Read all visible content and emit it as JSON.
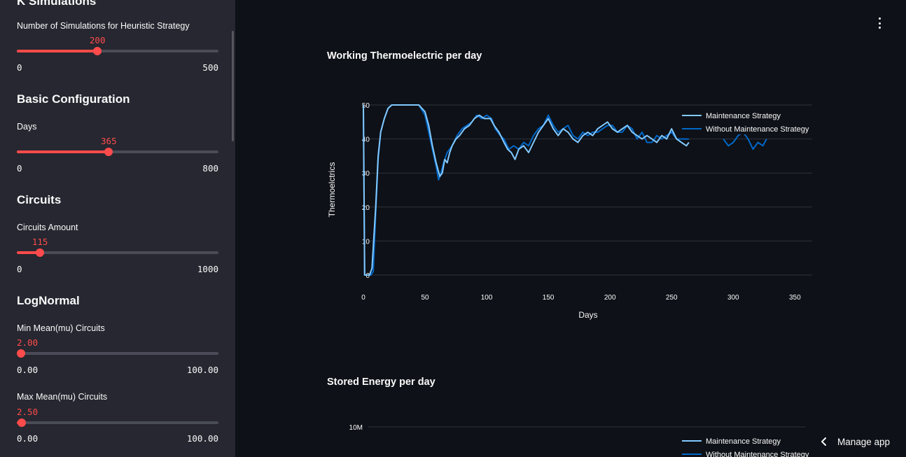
{
  "sidebar": {
    "top_heading": "K Simulations",
    "sliders": [
      {
        "section": null,
        "label": "Number of Simulations for Heuristic Strategy",
        "value": "200",
        "min": "0",
        "max": "500",
        "fraction": 0.4
      },
      {
        "section": "Basic Configuration",
        "label": "Days",
        "value": "365",
        "min": "0",
        "max": "800",
        "fraction": 0.456
      },
      {
        "section": "Circuits",
        "label": "Circuits Amount",
        "value": "115",
        "min": "0",
        "max": "1000",
        "fraction": 0.115
      },
      {
        "section": "LogNormal",
        "label": "Min Mean(mu) Circuits",
        "value": "2.00",
        "min": "0.00",
        "max": "100.00",
        "fraction": 0.02
      },
      {
        "section": null,
        "label": "Max Mean(mu) Circuits",
        "value": "2.50",
        "min": "0.00",
        "max": "100.00",
        "fraction": 0.025
      }
    ]
  },
  "main": {
    "menu_icon": "vertical-ellipsis-icon",
    "manage_app": {
      "label": "Manage app",
      "icon": "chevron-left-icon"
    }
  },
  "colors": {
    "accent": "#ff4b4b",
    "series_maintenance": "#83c9ff",
    "series_without": "#0068c9",
    "background": "#0e1117",
    "sidebar": "#262730"
  },
  "chart_data": [
    {
      "type": "line",
      "title": "Working Thermoelectric per day",
      "xlabel": "Days",
      "ylabel": "Thermoelctrics",
      "xlim": [
        0,
        364
      ],
      "ylim": [
        0,
        50
      ],
      "xticks": [
        "0",
        "50",
        "100",
        "150",
        "200",
        "250",
        "300",
        "350"
      ],
      "yticks": [
        "0",
        "10",
        "20",
        "30",
        "40",
        "50"
      ],
      "legend": "top-right",
      "series": [
        {
          "name": "Maintenance Strategy",
          "color": "#83c9ff",
          "points": [
            [
              0,
              50
            ],
            [
              1,
              0
            ],
            [
              5,
              0
            ],
            [
              7,
              2
            ],
            [
              10,
              20
            ],
            [
              12,
              35
            ],
            [
              14,
              42
            ],
            [
              17,
              46
            ],
            [
              20,
              49
            ],
            [
              23,
              50
            ],
            [
              30,
              50
            ],
            [
              40,
              50
            ],
            [
              45,
              50
            ],
            [
              50,
              48
            ],
            [
              53,
              44
            ],
            [
              56,
              38
            ],
            [
              59,
              33
            ],
            [
              62,
              29
            ],
            [
              64,
              30
            ],
            [
              66,
              34
            ],
            [
              68,
              33
            ],
            [
              70,
              36
            ],
            [
              72,
              38
            ],
            [
              75,
              40
            ],
            [
              78,
              41
            ],
            [
              82,
              43
            ],
            [
              86,
              44
            ],
            [
              90,
              46
            ],
            [
              94,
              47
            ],
            [
              98,
              46
            ],
            [
              103,
              46
            ],
            [
              106,
              44
            ],
            [
              110,
              42
            ],
            [
              114,
              39
            ],
            [
              117,
              37
            ],
            [
              120,
              36
            ],
            [
              123,
              34
            ],
            [
              126,
              37
            ],
            [
              130,
              38
            ],
            [
              134,
              36
            ],
            [
              138,
              39
            ],
            [
              142,
              42
            ],
            [
              146,
              44
            ],
            [
              150,
              46
            ],
            [
              154,
              43
            ],
            [
              158,
              41
            ],
            [
              162,
              43
            ],
            [
              166,
              42
            ],
            [
              170,
              40
            ],
            [
              174,
              39
            ],
            [
              178,
              41
            ],
            [
              182,
              42
            ],
            [
              186,
              41
            ],
            [
              190,
              43
            ],
            [
              194,
              44
            ],
            [
              198,
              45
            ],
            [
              202,
              43
            ],
            [
              206,
              42
            ],
            [
              210,
              43
            ],
            [
              214,
              44
            ],
            [
              218,
              42
            ],
            [
              222,
              41
            ],
            [
              226,
              40
            ],
            [
              230,
              41
            ],
            [
              234,
              40
            ],
            [
              238,
              39
            ],
            [
              242,
              41
            ],
            [
              246,
              40
            ],
            [
              250,
              43
            ],
            [
              254,
              40
            ],
            [
              258,
              39
            ],
            [
              262,
              38
            ],
            [
              264,
              39
            ]
          ]
        },
        {
          "name": "Without Maintenance Strategy",
          "color": "#0068c9",
          "points": [
            [
              0,
              50
            ],
            [
              1,
              0
            ],
            [
              6,
              0
            ],
            [
              8,
              1
            ],
            [
              10,
              18
            ],
            [
              12,
              34
            ],
            [
              14,
              42
            ],
            [
              17,
              46
            ],
            [
              20,
              49
            ],
            [
              23,
              50
            ],
            [
              30,
              50
            ],
            [
              40,
              50
            ],
            [
              45,
              50
            ],
            [
              50,
              47
            ],
            [
              53,
              42
            ],
            [
              56,
              37
            ],
            [
              59,
              32
            ],
            [
              61,
              28
            ],
            [
              63,
              30
            ],
            [
              65,
              33
            ],
            [
              68,
              36
            ],
            [
              72,
              38
            ],
            [
              76,
              41
            ],
            [
              80,
              43
            ],
            [
              84,
              44
            ],
            [
              88,
              45
            ],
            [
              92,
              47
            ],
            [
              96,
              46
            ],
            [
              100,
              47
            ],
            [
              104,
              46
            ],
            [
              107,
              43
            ],
            [
              111,
              41
            ],
            [
              114,
              40
            ],
            [
              118,
              37
            ],
            [
              122,
              38
            ],
            [
              126,
              37
            ],
            [
              130,
              39
            ],
            [
              134,
              38
            ],
            [
              138,
              41
            ],
            [
              142,
              43
            ],
            [
              146,
              44
            ],
            [
              150,
              47
            ],
            [
              154,
              44
            ],
            [
              158,
              42
            ],
            [
              162,
              43
            ],
            [
              166,
              44
            ],
            [
              170,
              41
            ],
            [
              174,
              40
            ],
            [
              178,
              42
            ],
            [
              182,
              41
            ],
            [
              186,
              42
            ],
            [
              190,
              42
            ],
            [
              194,
              43
            ],
            [
              198,
              44
            ],
            [
              202,
              44
            ],
            [
              206,
              42
            ],
            [
              210,
              42
            ],
            [
              214,
              44
            ],
            [
              218,
              43
            ],
            [
              222,
              40
            ],
            [
              226,
              42
            ],
            [
              230,
              39
            ],
            [
              234,
              39
            ],
            [
              238,
              41
            ],
            [
              242,
              40
            ],
            [
              246,
              41
            ],
            [
              250,
              42
            ],
            [
              254,
              40
            ],
            [
              258,
              40
            ],
            [
              262,
              40
            ],
            [
              264,
              40
            ]
          ],
          "segments": [
            [
              [
                292,
                40
              ],
              [
                296,
                38
              ],
              [
                300,
                39
              ],
              [
                304,
                41
              ],
              [
                308,
                42
              ],
              [
                312,
                40
              ],
              [
                316,
                37
              ],
              [
                320,
                39
              ],
              [
                324,
                38
              ],
              [
                327,
                40
              ]
            ]
          ]
        }
      ]
    },
    {
      "type": "line",
      "title": "Stored Energy per day",
      "yticks": [
        "10M"
      ],
      "legend": "top-right",
      "series": [
        {
          "name": "Maintenance Strategy",
          "color": "#83c9ff",
          "values": []
        },
        {
          "name": "Without Maintenance Strategy",
          "color": "#0068c9",
          "values": []
        }
      ]
    }
  ]
}
